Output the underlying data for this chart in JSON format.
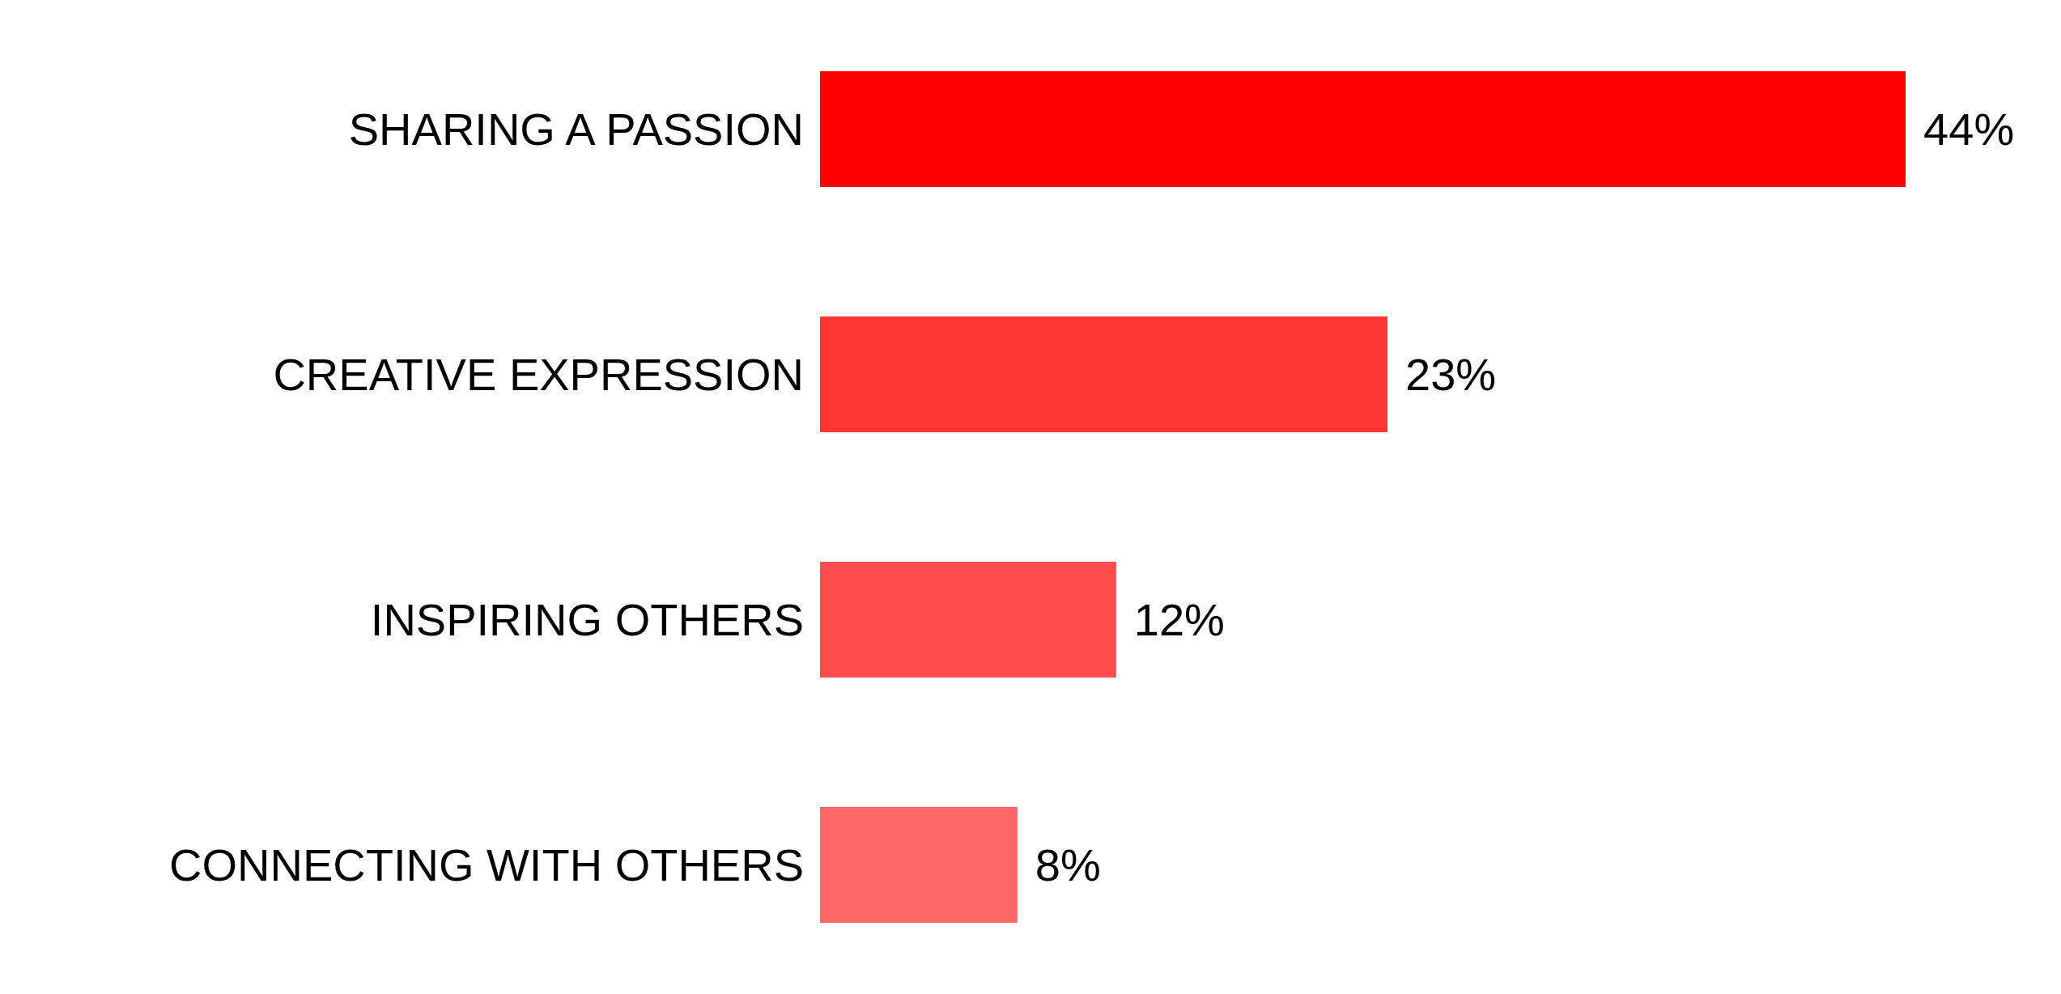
{
  "chart_data": {
    "type": "bar",
    "orientation": "horizontal",
    "categories": [
      "SHARING A PASSION",
      "CREATIVE EXPRESSION",
      "INSPIRING OTHERS",
      "CONNECTING WITH OTHERS"
    ],
    "values": [
      44,
      23,
      12,
      8
    ],
    "colors": [
      "#ff0000",
      "#ff3535",
      "#ff4b4b",
      "#ff6666"
    ],
    "value_labels": [
      "44%",
      "23%",
      "12%",
      "8%"
    ]
  }
}
